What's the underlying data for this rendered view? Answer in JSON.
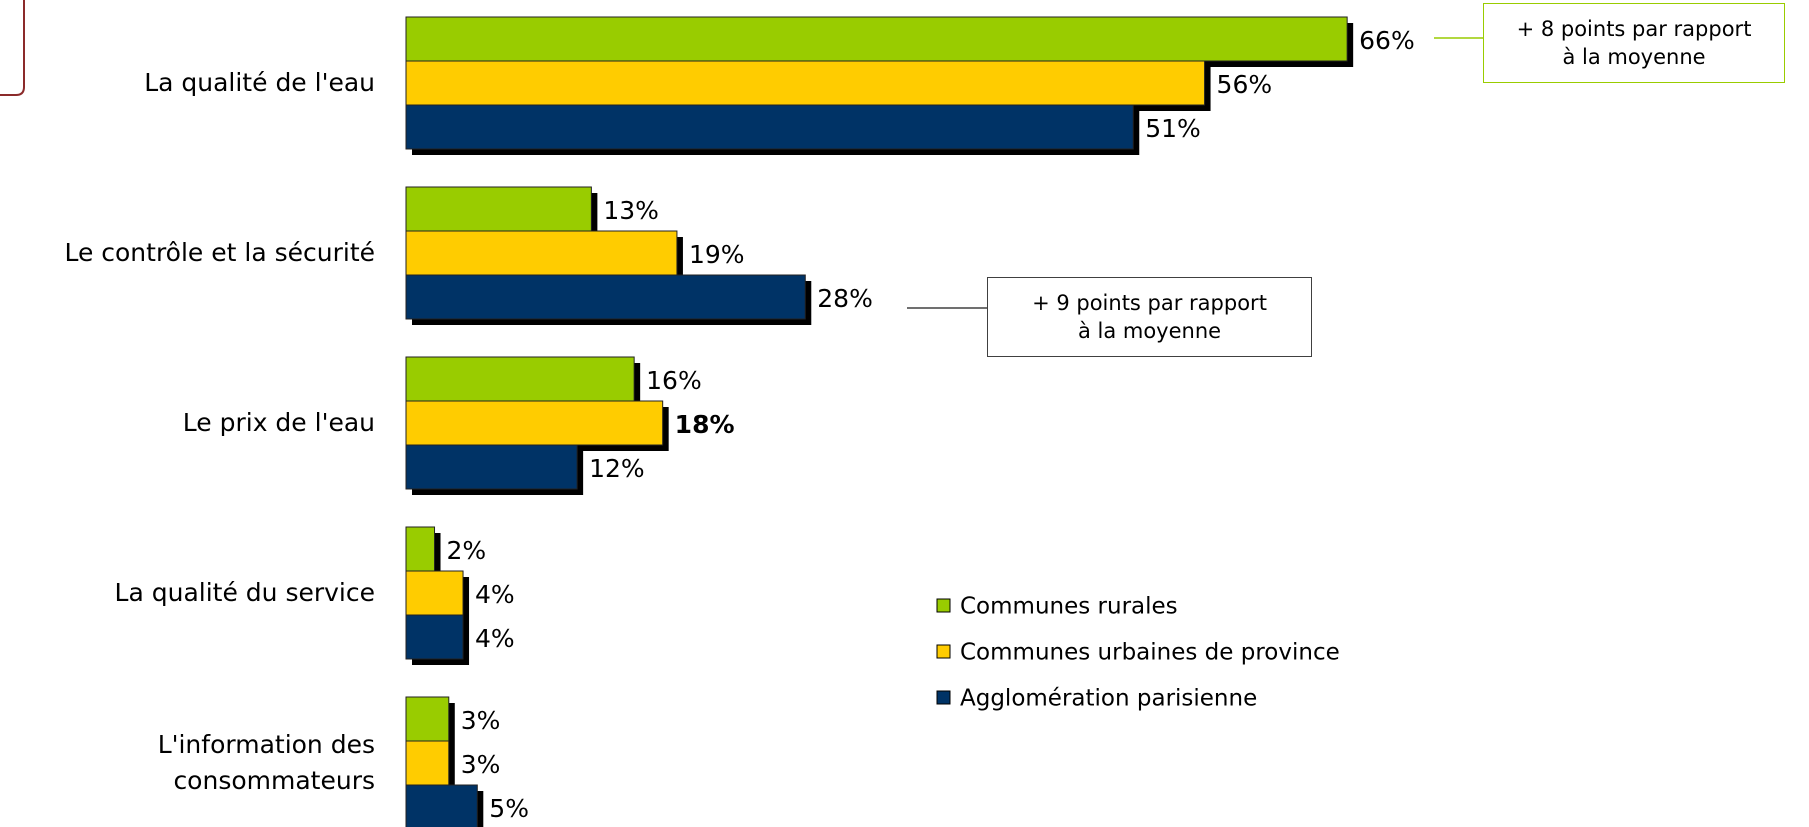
{
  "chart_data": {
    "type": "bar",
    "orientation": "horizontal",
    "categories": [
      "La qualité de l'eau",
      "Le contrôle et la sécurité",
      "Le prix de l'eau",
      "La qualité du service",
      "L'information des consommateurs"
    ],
    "series": [
      {
        "name": "Communes rurales",
        "color": "#99cc00",
        "values": [
          66,
          13,
          16,
          2,
          3
        ],
        "value_labels": [
          "66%",
          "13%",
          "16%",
          "2%",
          "3%"
        ]
      },
      {
        "name": "Communes urbaines de province",
        "color": "#ffcc00",
        "values": [
          56,
          19,
          18,
          4,
          3
        ],
        "value_labels": [
          "56%",
          "19%",
          "18%",
          "4%",
          "3%"
        ]
      },
      {
        "name": "Agglomération parisienne",
        "color": "#003366",
        "values": [
          51,
          28,
          12,
          4,
          5
        ],
        "value_labels": [
          "51%",
          "28%",
          "12%",
          "4%",
          "5%"
        ]
      }
    ],
    "annotations": [
      {
        "lines": [
          "+ 8 points par rapport",
          "à la moyenne"
        ],
        "color": "#99cc00"
      },
      {
        "lines": [
          "+ 9 points par rapport",
          "à la moyenne"
        ],
        "color": "#404040"
      }
    ]
  }
}
